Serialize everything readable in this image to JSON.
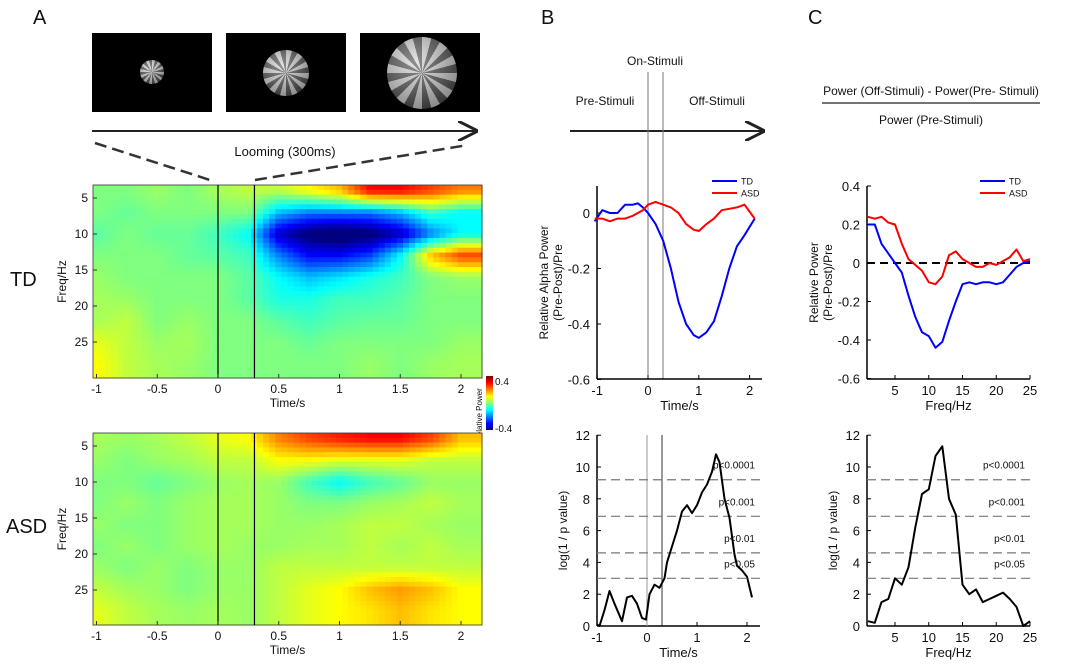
{
  "panel_labels": {
    "a": "A",
    "b": "B",
    "c": "C"
  },
  "stimulus": {
    "caption": "Looming (300ms)"
  },
  "row_labels": {
    "td": "TD",
    "asd": "ASD"
  },
  "diagram_b": {
    "on": "On-Stimuli",
    "pre": "Pre-Stimuli",
    "off": "Off-Stimuli"
  },
  "formula_c": {
    "numerator": "Power (Off-Stimuli) - Power(Pre- Stimuli)",
    "denominator": "Power (Pre-Stimuli)"
  },
  "colorbar": {
    "label": "Relative Power",
    "max_label": "0.4",
    "min_label": "-0.4",
    "colormap": "jet",
    "range": [
      -0.4,
      0.4
    ]
  },
  "chart_data": [
    {
      "type": "heatmap",
      "group": "TD",
      "xlabel": "Time/s",
      "ylabel": "Freq/Hz",
      "xticks": [
        "-1",
        "-0.5",
        "0",
        "0.5",
        "1",
        "1.5",
        "2"
      ],
      "yticks": [
        "5",
        "10",
        "15",
        "20",
        "25"
      ],
      "xlim": [
        -1.03,
        2.17
      ],
      "ylim": [
        3.2,
        30
      ],
      "vlines": [
        0,
        0.3
      ],
      "times": [
        -1,
        -0.75,
        -0.5,
        -0.25,
        0,
        0.25,
        0.5,
        0.75,
        1,
        1.25,
        1.5,
        1.75,
        2
      ],
      "freqs": [
        4,
        7,
        10,
        13,
        16,
        19,
        22,
        25,
        28
      ],
      "values": [
        [
          0,
          0,
          0.02,
          0,
          0.03,
          0.05,
          0.05,
          0.1,
          0.15,
          0.3,
          0.3,
          0.25,
          0.2
        ],
        [
          0,
          -0.02,
          0,
          0,
          0,
          0,
          -0.15,
          -0.2,
          -0.2,
          -0.2,
          -0.15,
          -0.05,
          -0.1
        ],
        [
          -0.03,
          0,
          -0.02,
          -0.02,
          -0.05,
          -0.1,
          -0.35,
          -0.42,
          -0.45,
          -0.42,
          -0.35,
          -0.2,
          -0.1
        ],
        [
          0,
          0,
          0,
          -0.02,
          -0.03,
          -0.05,
          -0.2,
          -0.3,
          -0.3,
          -0.25,
          -0.1,
          0.15,
          0.25
        ],
        [
          0.02,
          0,
          0,
          0,
          0,
          -0.03,
          -0.1,
          -0.15,
          -0.12,
          -0.08,
          -0.05,
          0,
          0.02
        ],
        [
          0.03,
          0.02,
          0,
          0,
          0,
          -0.03,
          -0.08,
          -0.08,
          -0.05,
          -0.05,
          -0.03,
          0,
          0
        ],
        [
          0.03,
          0.05,
          0,
          0.02,
          0,
          0,
          -0.03,
          -0.05,
          -0.03,
          -0.02,
          -0.02,
          0,
          0
        ],
        [
          0.08,
          0.05,
          0.02,
          0.03,
          0,
          0,
          0,
          -0.02,
          0,
          0,
          0,
          0,
          0.02
        ],
        [
          0.1,
          0.05,
          0.03,
          0.02,
          0,
          0,
          0,
          0,
          0,
          0.02,
          0,
          0.02,
          0.03
        ]
      ]
    },
    {
      "type": "heatmap",
      "group": "ASD",
      "xlabel": "Time/s",
      "ylabel": "Freq/Hz",
      "xticks": [
        "-1",
        "-0.5",
        "0",
        "0.5",
        "1",
        "1.5",
        "2"
      ],
      "yticks": [
        "5",
        "10",
        "15",
        "20",
        "25"
      ],
      "xlim": [
        -1.03,
        2.17
      ],
      "ylim": [
        3.2,
        30
      ],
      "vlines": [
        0,
        0.3
      ],
      "times": [
        -1,
        -0.75,
        -0.5,
        -0.25,
        0,
        0.25,
        0.5,
        0.75,
        1,
        1.25,
        1.5,
        1.75,
        2
      ],
      "freqs": [
        4,
        7,
        10,
        13,
        16,
        19,
        22,
        25,
        28
      ],
      "values": [
        [
          0.03,
          0.02,
          0.03,
          0.05,
          0.08,
          0.1,
          0.2,
          0.25,
          0.28,
          0.3,
          0.3,
          0.25,
          0.15
        ],
        [
          0.02,
          0,
          0.02,
          0.03,
          0.05,
          0.05,
          0.1,
          0.1,
          0.08,
          0.08,
          0.08,
          0.05,
          0.05
        ],
        [
          0,
          0,
          -0.02,
          0,
          0.02,
          0.03,
          0.02,
          -0.05,
          -0.1,
          -0.05,
          -0.02,
          0.02,
          0.02
        ],
        [
          0,
          0.02,
          0,
          0.02,
          0.03,
          0.03,
          0.02,
          0,
          0,
          0.02,
          0.03,
          0.05,
          0.03
        ],
        [
          0.02,
          0,
          0,
          0.02,
          0.03,
          0.03,
          0.02,
          0.02,
          0.03,
          0.05,
          0.05,
          0.03,
          0.02
        ],
        [
          0,
          0.02,
          0,
          0.02,
          0.03,
          0.02,
          0.02,
          0.03,
          0.03,
          0.05,
          0.03,
          0.05,
          0.03
        ],
        [
          0.02,
          0,
          0.02,
          0,
          0.02,
          0.02,
          0.05,
          0.05,
          0.05,
          0.05,
          0.05,
          0.05,
          0.05
        ],
        [
          0.05,
          0.03,
          0.02,
          0,
          0.02,
          0.02,
          0.05,
          0.08,
          0.1,
          0.15,
          0.18,
          0.15,
          0.1
        ],
        [
          0.08,
          0.05,
          0.03,
          0.02,
          0.03,
          0.02,
          0.05,
          0.08,
          0.1,
          0.12,
          0.15,
          0.12,
          0.1
        ]
      ]
    },
    {
      "type": "line",
      "xlabel": "Time/s",
      "ylabel": "Relative Alpha Power\n(Pre-Post)/Pre",
      "xticks": [
        "-1",
        "0",
        "1",
        "2"
      ],
      "yticks": [
        "0",
        "-0.2",
        "-0.4",
        "-0.6"
      ],
      "ylim": [
        -0.6,
        0.1
      ],
      "xlim": [
        -1.05,
        2.15
      ],
      "vlines": [
        0,
        0.3
      ],
      "legend": "top-right",
      "x": [
        -1.05,
        -0.9,
        -0.75,
        -0.6,
        -0.45,
        -0.3,
        -0.2,
        -0.1,
        0,
        0.15,
        0.3,
        0.45,
        0.6,
        0.75,
        0.9,
        1.0,
        1.15,
        1.3,
        1.45,
        1.6,
        1.75,
        1.9,
        2.1
      ],
      "series": [
        {
          "name": "TD",
          "color": "#0000ff",
          "values": [
            -0.03,
            0.01,
            0.0,
            0.0,
            0.03,
            0.03,
            0.035,
            0.02,
            0.0,
            -0.04,
            -0.1,
            -0.2,
            -0.32,
            -0.4,
            -0.44,
            -0.45,
            -0.43,
            -0.39,
            -0.3,
            -0.2,
            -0.12,
            -0.08,
            -0.02
          ]
        },
        {
          "name": "ASD",
          "color": "#ff0000",
          "values": [
            -0.02,
            -0.02,
            -0.03,
            -0.02,
            -0.02,
            -0.01,
            0.0,
            0.01,
            0.03,
            0.04,
            0.03,
            0.02,
            0.0,
            -0.04,
            -0.06,
            -0.065,
            -0.04,
            -0.02,
            0.01,
            0.015,
            0.02,
            0.03,
            -0.02
          ]
        }
      ]
    },
    {
      "type": "line",
      "xlabel": "Time/s",
      "ylabel": "log(1 / p value)",
      "xticks": [
        "-1",
        "0",
        "1",
        "2"
      ],
      "yticks": [
        "0",
        "2",
        "4",
        "6",
        "8",
        "10",
        "12"
      ],
      "ylim": [
        0,
        12
      ],
      "xlim": [
        -1,
        2.25
      ],
      "vlines": [
        0,
        0.3
      ],
      "thresholds": [
        {
          "label": "p<0.0001",
          "value": 9.2
        },
        {
          "label": "p<0.001",
          "value": 6.9
        },
        {
          "label": "p<0.01",
          "value": 4.6
        },
        {
          "label": "p<0.05",
          "value": 3.0
        }
      ],
      "x": [
        -1.0,
        -0.95,
        -0.85,
        -0.75,
        -0.65,
        -0.5,
        -0.4,
        -0.3,
        -0.2,
        -0.1,
        -0.02,
        0.05,
        0.15,
        0.25,
        0.35,
        0.4,
        0.5,
        0.6,
        0.7,
        0.8,
        0.9,
        1.0,
        1.1,
        1.2,
        1.3,
        1.38,
        1.45,
        1.55,
        1.65,
        1.75,
        1.8,
        1.9,
        2.0,
        2.1
      ],
      "series": [
        {
          "color": "#000000",
          "values": [
            0.1,
            0.0,
            1.0,
            2.2,
            1.4,
            0.3,
            1.8,
            1.9,
            1.4,
            0.5,
            0.4,
            2.0,
            2.6,
            2.4,
            3.0,
            4.0,
            5.0,
            6.0,
            7.2,
            7.6,
            7.1,
            7.6,
            8.4,
            8.9,
            9.7,
            10.8,
            10.3,
            8.0,
            6.8,
            4.5,
            3.8,
            3.5,
            3.1,
            1.8
          ]
        }
      ]
    },
    {
      "type": "line",
      "xlabel": "Freq/Hz",
      "ylabel": "Relative Power\n(Pre-Post)/Pre",
      "xticks": [
        "5",
        "10",
        "15",
        "20",
        "25"
      ],
      "yticks": [
        "0.4",
        "0.2",
        "0",
        "-0.2",
        "-0.4",
        "-0.6"
      ],
      "ylim": [
        -0.6,
        0.4
      ],
      "xlim": [
        1,
        25
      ],
      "hline": 0,
      "legend": "top-right",
      "x": [
        1,
        2,
        3,
        4,
        5,
        6,
        7,
        8,
        9,
        10,
        11,
        12,
        13,
        14,
        15,
        16,
        17,
        18,
        19,
        20,
        21,
        22,
        23,
        24,
        25
      ],
      "series": [
        {
          "name": "TD",
          "color": "#0000ff",
          "values": [
            0.2,
            0.2,
            0.1,
            0.05,
            0,
            -0.05,
            -0.17,
            -0.28,
            -0.36,
            -0.38,
            -0.44,
            -0.41,
            -0.3,
            -0.2,
            -0.11,
            -0.1,
            -0.11,
            -0.1,
            -0.1,
            -0.11,
            -0.1,
            -0.06,
            -0.02,
            0,
            0.01
          ]
        },
        {
          "name": "ASD",
          "color": "#ff0000",
          "values": [
            0.24,
            0.23,
            0.24,
            0.21,
            0.2,
            0.1,
            0.02,
            -0.01,
            -0.04,
            -0.1,
            -0.11,
            -0.07,
            0.04,
            0.06,
            0.02,
            0,
            -0.02,
            -0.02,
            0,
            -0.01,
            0.01,
            0.03,
            0.07,
            0.01,
            0.02
          ]
        }
      ]
    },
    {
      "type": "line",
      "xlabel": "Freq/Hz",
      "ylabel": "log(1 / p value)",
      "xticks": [
        "5",
        "10",
        "15",
        "20",
        "25"
      ],
      "yticks": [
        "0",
        "2",
        "4",
        "6",
        "8",
        "10",
        "12"
      ],
      "ylim": [
        0,
        12
      ],
      "xlim": [
        1,
        25
      ],
      "thresholds": [
        {
          "label": "p<0.0001",
          "value": 9.2
        },
        {
          "label": "p<0.001",
          "value": 6.9
        },
        {
          "label": "p<0.01",
          "value": 4.6
        },
        {
          "label": "p<0.05",
          "value": 3.0
        }
      ],
      "x": [
        1,
        2,
        3,
        4,
        5,
        6,
        7,
        8,
        9,
        10,
        11,
        12,
        13,
        14,
        15,
        16,
        17,
        18,
        19,
        20,
        21,
        22,
        23,
        24,
        25
      ],
      "series": [
        {
          "color": "#000000",
          "values": [
            0.3,
            0.2,
            1.5,
            1.7,
            3,
            2.6,
            3.7,
            6.2,
            8.3,
            8.6,
            10.7,
            11.3,
            8,
            7,
            2.6,
            2,
            2.3,
            1.5,
            1.7,
            1.9,
            2.1,
            1.7,
            1.2,
            0,
            0.3
          ]
        }
      ]
    }
  ]
}
